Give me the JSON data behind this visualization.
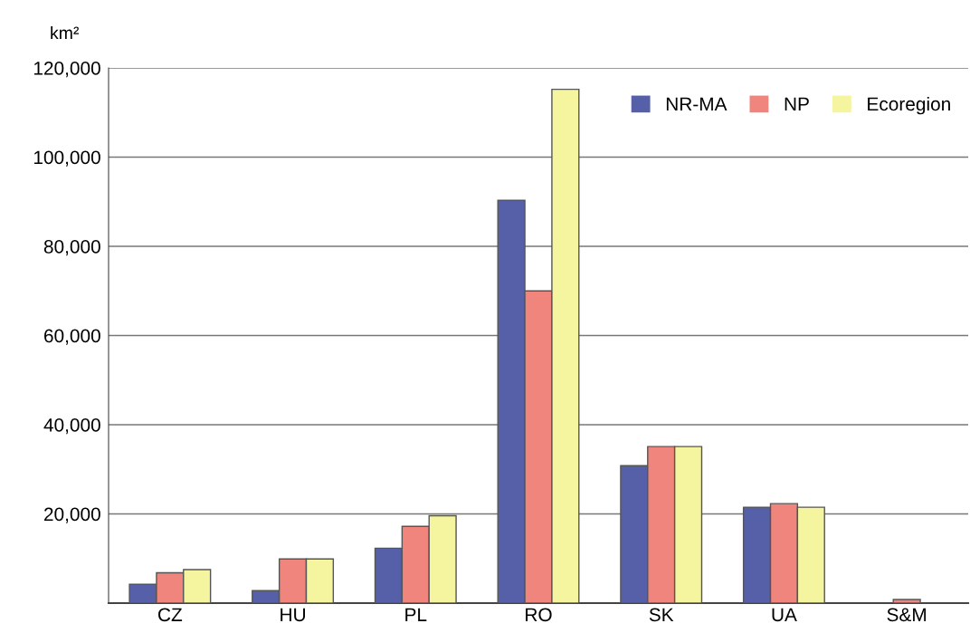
{
  "chart_data": {
    "type": "bar",
    "ylabel": "km²",
    "categories": [
      "CZ",
      "HU",
      "PL",
      "RO",
      "SK",
      "UA",
      "S&M"
    ],
    "series": [
      {
        "name": "NR-MA",
        "color": "#5560a8",
        "values": [
          4200,
          2800,
          12300,
          90300,
          30800,
          21500,
          null
        ]
      },
      {
        "name": "NP",
        "color": "#ef857c",
        "values": [
          6800,
          9900,
          17200,
          70000,
          35100,
          22300,
          800
        ]
      },
      {
        "name": "Ecoregion",
        "color": "#f5f5a0",
        "values": [
          7500,
          9900,
          19600,
          115200,
          35100,
          21500,
          null
        ]
      }
    ],
    "ylim": [
      0,
      120000
    ],
    "yticks": [
      {
        "value": 20000,
        "label": "20,000"
      },
      {
        "value": 40000,
        "label": "40,000"
      },
      {
        "value": 60000,
        "label": "60,000"
      },
      {
        "value": 80000,
        "label": "80,000"
      },
      {
        "value": 100000,
        "label": "100,000"
      },
      {
        "value": 120000,
        "label": "120,000"
      }
    ],
    "grid": "y",
    "legend": "top right"
  }
}
